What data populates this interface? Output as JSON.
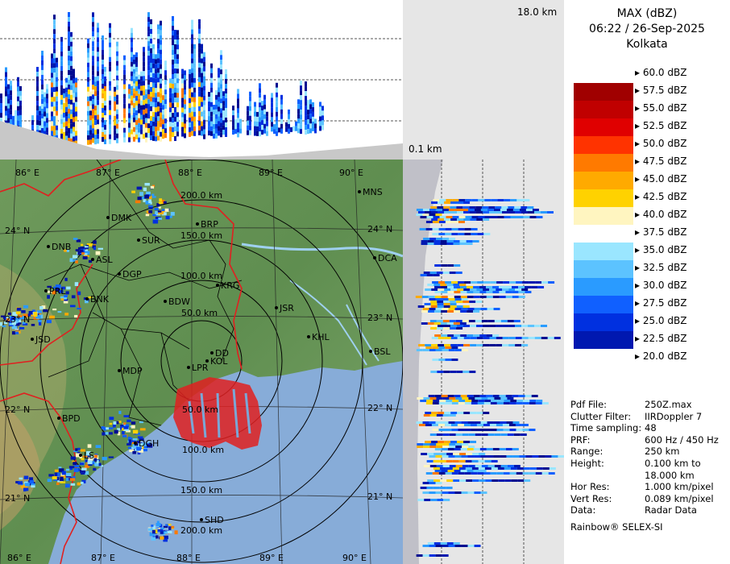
{
  "header": {
    "product": "MAX (dBZ)",
    "datetime": "06:22 / 26-Sep-2025",
    "station": "Kolkata"
  },
  "heights": {
    "top": "18.0 km",
    "bottom": "0.1 km"
  },
  "legend": {
    "levels": [
      {
        "label": "60.0 dBZ",
        "color": "#ffffff"
      },
      {
        "label": "57.5 dBZ",
        "color": "#a00000"
      },
      {
        "label": "55.0 dBZ",
        "color": "#c00000"
      },
      {
        "label": "52.5 dBZ",
        "color": "#e00000"
      },
      {
        "label": "50.0 dBZ",
        "color": "#ff3300"
      },
      {
        "label": "47.5 dBZ",
        "color": "#ff7a00"
      },
      {
        "label": "45.0 dBZ",
        "color": "#ffaa00"
      },
      {
        "label": "42.5 dBZ",
        "color": "#ffd200"
      },
      {
        "label": "40.0 dBZ",
        "color": "#fff5c0"
      },
      {
        "label": "37.5 dBZ",
        "color": "#ffffff"
      },
      {
        "label": "35.0 dBZ",
        "color": "#9ae6ff"
      },
      {
        "label": "32.5 dBZ",
        "color": "#5cc3ff"
      },
      {
        "label": "30.0 dBZ",
        "color": "#2a9bff"
      },
      {
        "label": "27.5 dBZ",
        "color": "#1060ff"
      },
      {
        "label": "25.0 dBZ",
        "color": "#0030e0"
      },
      {
        "label": "22.5 dBZ",
        "color": "#0018b0"
      },
      {
        "label": "20.0 dBZ",
        "color": "#000a90"
      }
    ]
  },
  "info": [
    {
      "key": "Pdf File:",
      "value": "250Z.max"
    },
    {
      "key": "Clutter Filter:",
      "value": "IIRDoppler 7"
    },
    {
      "key": "Time sampling:",
      "value": "48"
    },
    {
      "key": "PRF:",
      "value": "600 Hz / 450 Hz"
    },
    {
      "key": "Range:",
      "value": "250 km"
    },
    {
      "key": "Height:",
      "value": "0.100 km to"
    },
    {
      "key": "",
      "value": "18.000 km"
    },
    {
      "key": "Hor Res:",
      "value": "1.000 km/pixel"
    },
    {
      "key": "Vert Res:",
      "value": "0.089 km/pixel"
    },
    {
      "key": "Data:",
      "value": "Radar Data"
    }
  ],
  "footer": "Rainbow® SELEX-SI",
  "map": {
    "range_rings": [
      "50.0 km",
      "100.0 km",
      "150.0 km",
      "200.0 km"
    ],
    "range_rings_south": [
      "50.0 km",
      "100.0 km",
      "150.0 km",
      "200.0 km"
    ],
    "lon_labels_top": [
      "86° E",
      "87° E",
      "88° E",
      "89° E",
      "90° E"
    ],
    "lon_labels_bottom": [
      "86° E",
      "87° E",
      "88° E",
      "89° E",
      "90° E"
    ],
    "lat_labels_left": [
      "24° N",
      "23° N",
      "22° N",
      "21° N"
    ],
    "lat_labels_right": [
      "24° N",
      "23° N",
      "22° N",
      "21° N"
    ],
    "stations": [
      "MNS",
      "DMK",
      "BRP",
      "SUR",
      "DNB",
      "ASL",
      "DCA",
      "DGP",
      "KRG",
      "PRL",
      "BNK",
      "BDW",
      "JSR",
      "JSD",
      "KHL",
      "BSL",
      "DD",
      "LPR",
      "KOL",
      "MDP",
      "BPD",
      "DGH",
      "LS",
      "SHD"
    ]
  }
}
